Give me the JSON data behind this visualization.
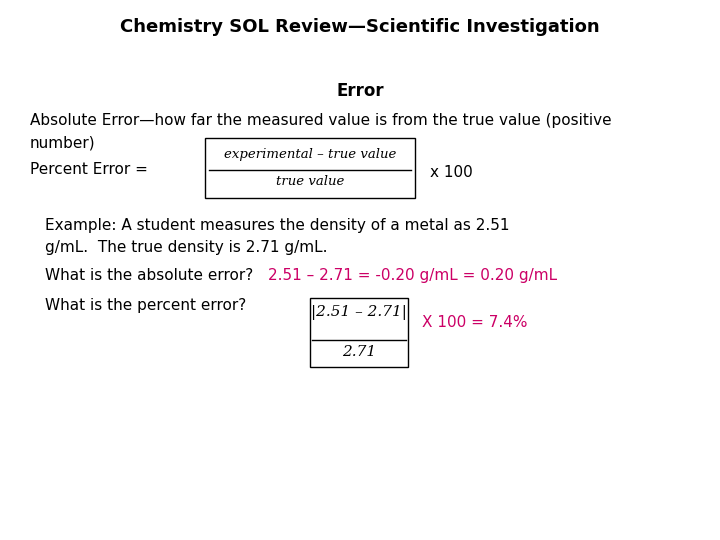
{
  "title": "Chemistry SOL Review—Scientific Investigation",
  "bg_color": "#ffffff",
  "text_color": "#000000",
  "red_color": "#cc0066",
  "section_header": "Error",
  "abs_error_line1": "Absolute Error—how far the measured value is from the true value (positive",
  "abs_error_line2": "number)",
  "percent_error_label": "Percent Error =",
  "percent_error_x100": "x 100",
  "fraction_numerator": "experimental – true value",
  "fraction_denominator": "true value",
  "example_line1": "Example: A student measures the density of a metal as 2.51",
  "example_line2": "g/mL.  The true density is 2.71 g/mL.",
  "abs_q": "What is the absolute error?",
  "abs_ans": "2.51 – 2.71 = -0.20 g/mL = 0.20 g/mL",
  "pct_q": "What is the percent error?",
  "pct_ans": "X 100 = 7.4%",
  "pct_fraction_num": "|2.51 – 2.71|",
  "pct_fraction_den": "2.71"
}
